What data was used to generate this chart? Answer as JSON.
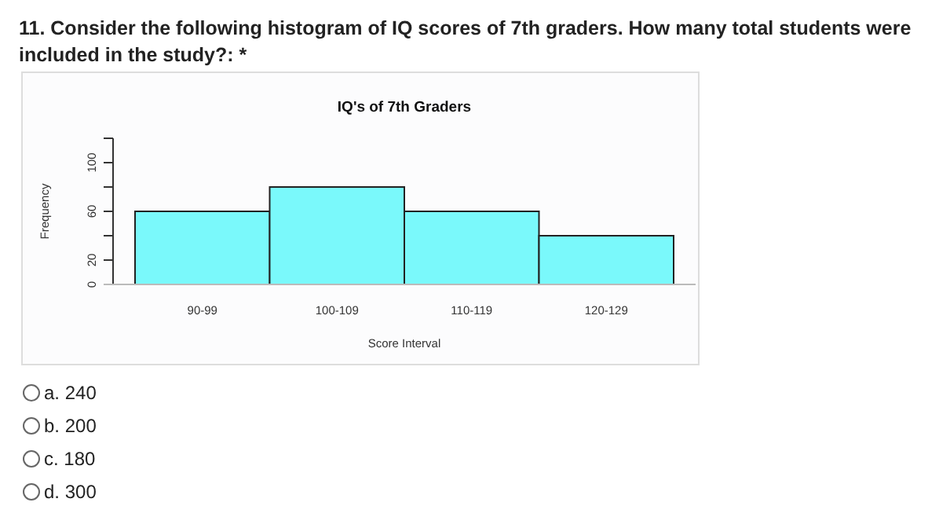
{
  "chart_data": {
    "type": "bar",
    "title": "IQ's of 7th Graders",
    "xlabel": "Score Interval",
    "ylabel": "Frequency",
    "categories": [
      "90-99",
      "100-109",
      "110-119",
      "120-129"
    ],
    "values": [
      60,
      80,
      60,
      40
    ],
    "color": "#7af9fb",
    "ylim": [
      0,
      120
    ],
    "yticks": [
      0,
      20,
      {
        "value": 40,
        "label": null
      },
      60,
      {
        "value": 80,
        "label": null
      },
      100,
      {
        "value": 120,
        "label": null
      }
    ],
    "grid": false,
    "annotations": [
      "11. Consider the following histogram of IQ scores of 7th graders. How many total students were included in the study?: *",
      "a. 240",
      "b. 200",
      "c. 180",
      "d. 300"
    ]
  }
}
